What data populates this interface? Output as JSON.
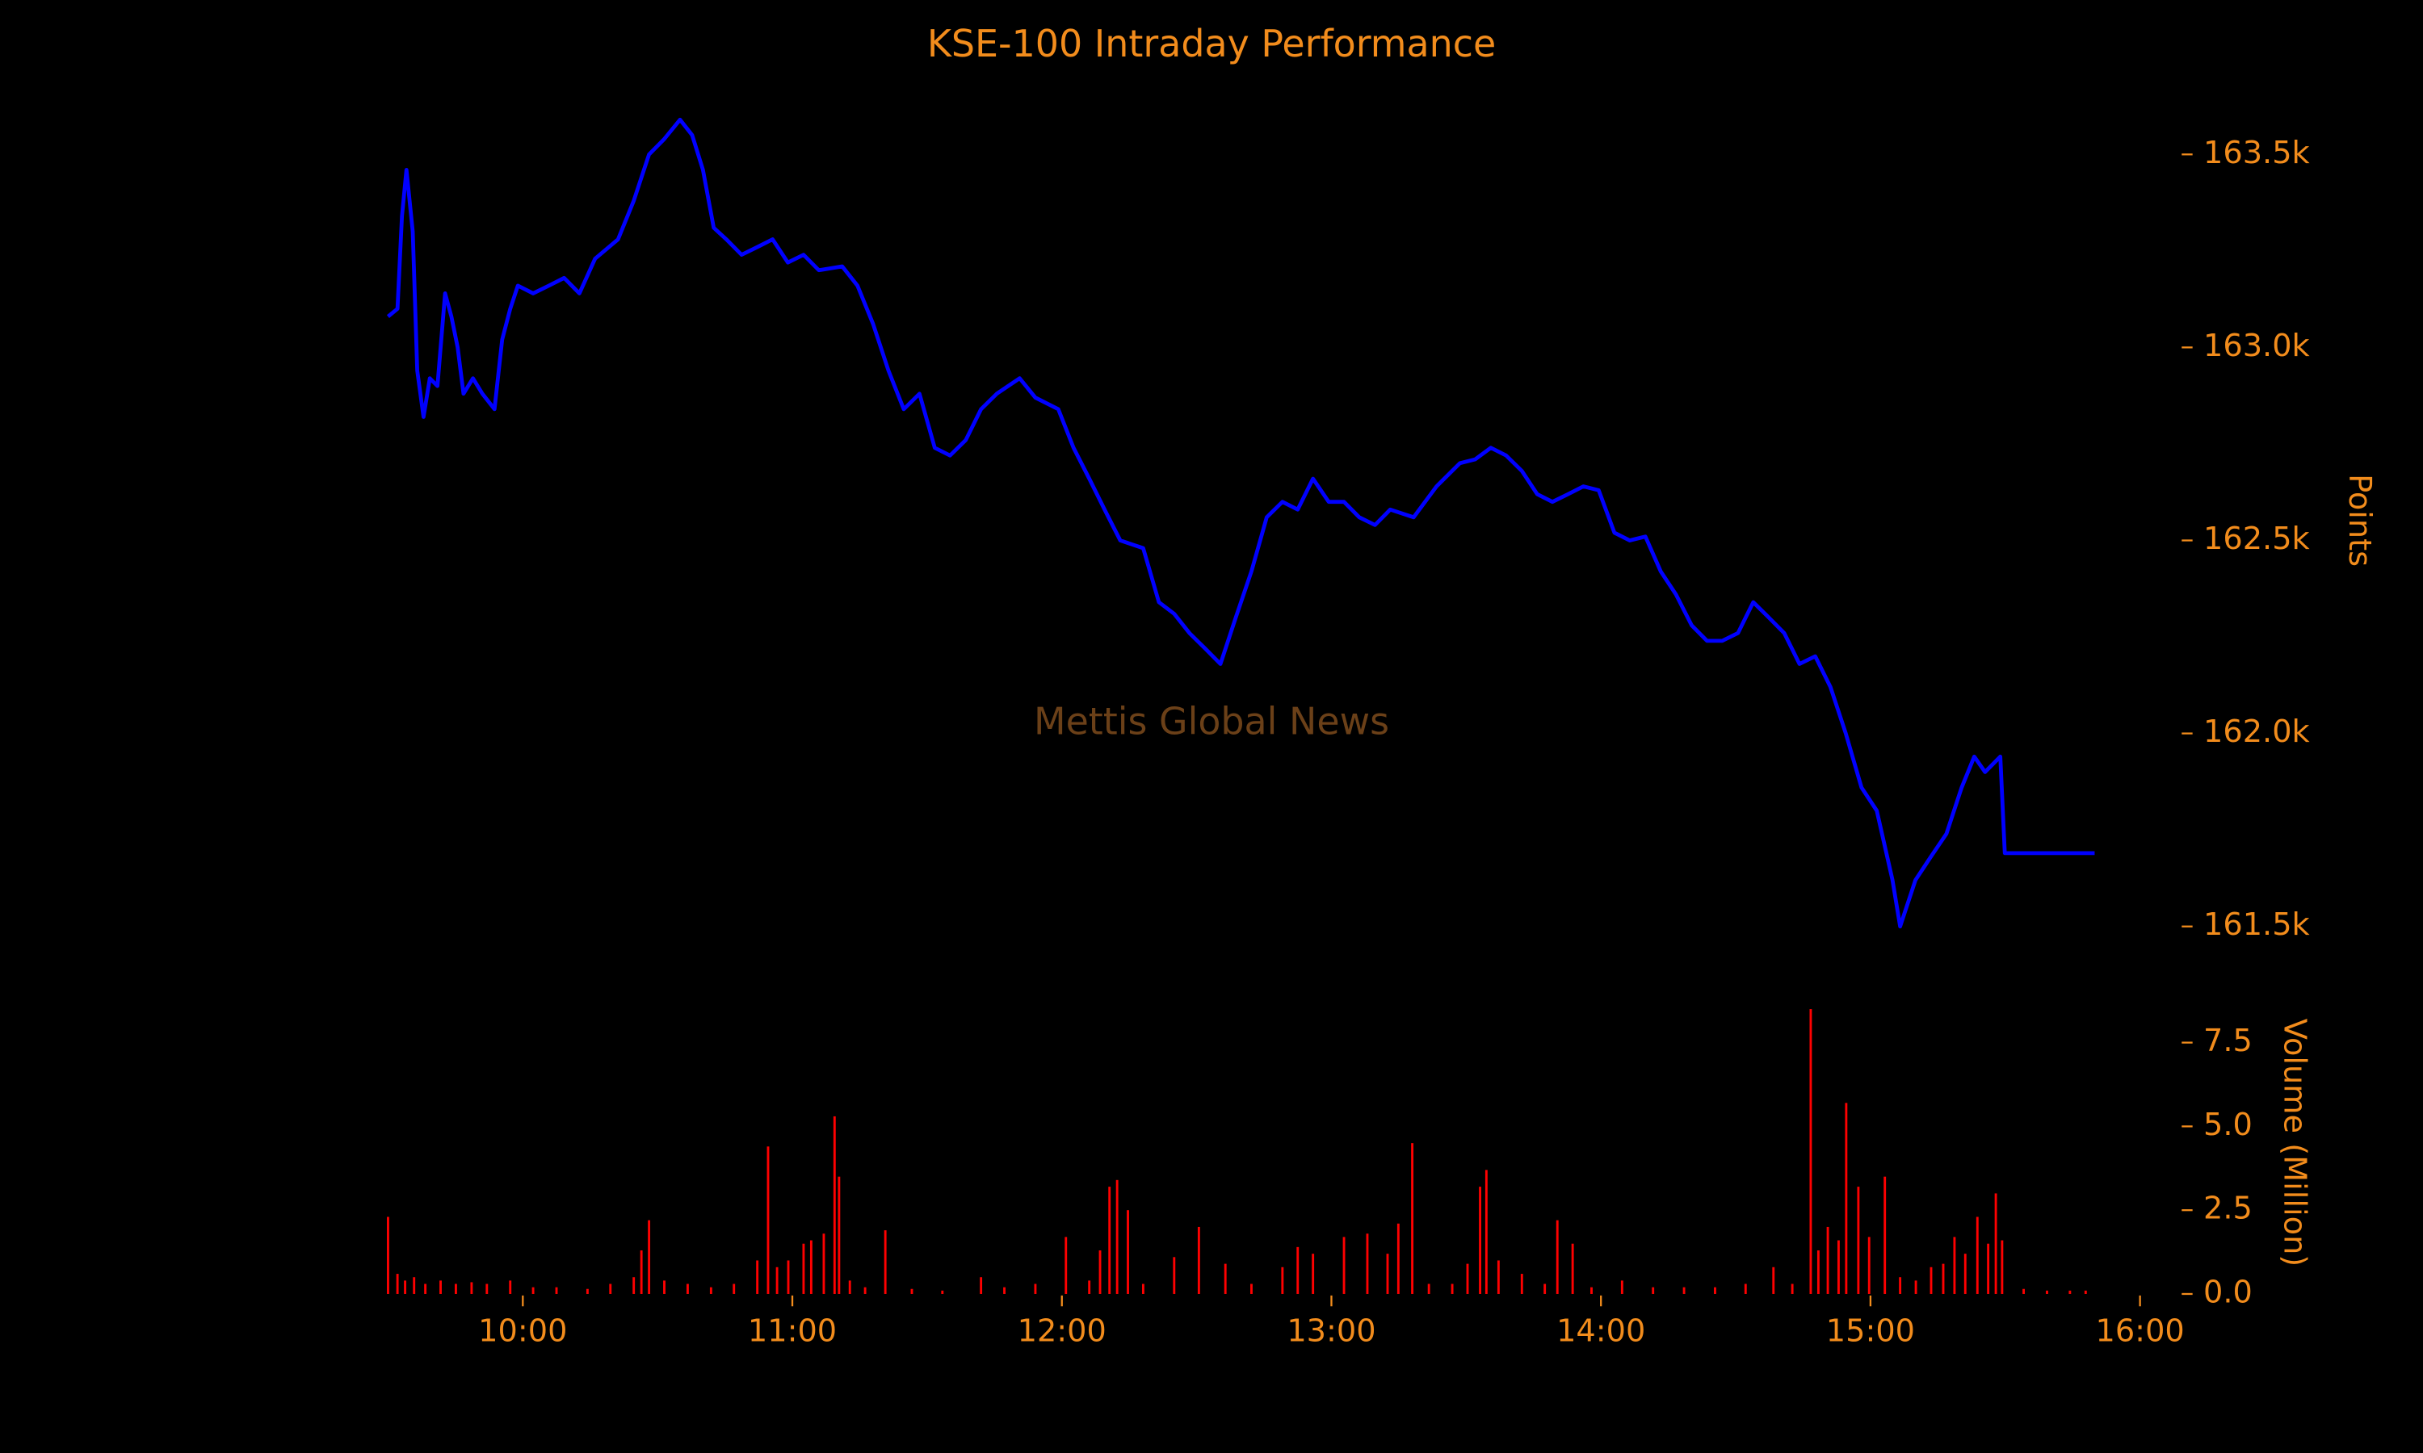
{
  "chart_data": {
    "type": "line",
    "title": "KSE-100 Intraday Performance",
    "watermark": "Mettis Global News",
    "ylabel": "Points",
    "y2label": "Volume (Million)",
    "text_color": "#f28c1c",
    "watermark_color": "#6b4018",
    "xlim": [
      570,
      960
    ],
    "xticks": [
      {
        "value": 600,
        "label": "10:00"
      },
      {
        "value": 660,
        "label": "11:00"
      },
      {
        "value": 720,
        "label": "12:00"
      },
      {
        "value": 780,
        "label": "13:00"
      },
      {
        "value": 840,
        "label": "14:00"
      },
      {
        "value": 900,
        "label": "15:00"
      },
      {
        "value": 960,
        "label": "16:00"
      }
    ],
    "ylim": [
      161420,
      163660
    ],
    "yticks": [
      {
        "value": 161500,
        "label": "161.5k"
      },
      {
        "value": 162000,
        "label": "162.0k"
      },
      {
        "value": 162500,
        "label": "162.5k"
      },
      {
        "value": 163000,
        "label": "163.0k"
      },
      {
        "value": 163500,
        "label": "163.5k"
      }
    ],
    "y2lim": [
      0,
      8.8
    ],
    "y2ticks": [
      {
        "value": 0,
        "label": "0.0"
      },
      2.5,
      {
        "value": 5,
        "label": "5.0"
      },
      7.5
    ],
    "price": {
      "color": "#0000ff",
      "x": [
        570.0,
        572.1,
        573.1,
        574.1,
        575.5,
        576.5,
        577.9,
        579.3,
        581.0,
        582.7,
        584.1,
        585.5,
        586.8,
        588.9,
        591.0,
        593.7,
        595.4,
        597.2,
        598.9,
        602.3,
        605.8,
        609.2,
        612.6,
        616.1,
        621.2,
        624.7,
        628.1,
        631.5,
        635.0,
        637.7,
        640.1,
        642.5,
        645.3,
        648.7,
        652.2,
        655.6,
        659.0,
        662.5,
        665.9,
        671.1,
        674.5,
        678.0,
        681.4,
        684.8,
        688.3,
        691.7,
        695.1,
        698.6,
        702.0,
        705.5,
        710.6,
        714.1,
        719.2,
        722.6,
        726.1,
        729.5,
        733.0,
        738.1,
        741.6,
        745.0,
        748.4,
        751.9,
        755.3,
        758.7,
        762.2,
        765.6,
        769.1,
        772.5,
        775.9,
        779.4,
        782.8,
        786.2,
        789.7,
        793.1,
        798.3,
        803.4,
        808.6,
        812.0,
        815.5,
        818.9,
        822.4,
        825.8,
        829.2,
        832.7,
        836.1,
        839.5,
        843.0,
        846.4,
        849.9,
        853.3,
        856.7,
        860.2,
        863.6,
        867.0,
        870.5,
        873.9,
        877.4,
        880.8,
        884.2,
        887.7,
        891.1,
        894.5,
        898.0,
        901.4,
        904.9,
        906.6,
        910.0,
        913.4,
        916.9,
        920.3,
        923.1,
        925.5,
        928.9,
        929.9,
        949.9
      ],
      "values": [
        163080,
        163100,
        163340,
        163460,
        163300,
        162940,
        162820,
        162920,
        162900,
        163140,
        163080,
        163000,
        162880,
        162920,
        162880,
        162840,
        163020,
        163100,
        163160,
        163140,
        163160,
        163180,
        163140,
        163230,
        163280,
        163380,
        163500,
        163540,
        163590,
        163550,
        163460,
        163310,
        163280,
        163240,
        163260,
        163280,
        163220,
        163240,
        163200,
        163210,
        163160,
        163060,
        162940,
        162840,
        162880,
        162740,
        162720,
        162760,
        162840,
        162880,
        162920,
        162870,
        162840,
        162740,
        162660,
        162580,
        162500,
        162480,
        162340,
        162310,
        162260,
        162220,
        162180,
        162300,
        162420,
        162560,
        162600,
        162580,
        162660,
        162600,
        162600,
        162560,
        162540,
        162580,
        162560,
        162640,
        162700,
        162710,
        162740,
        162720,
        162680,
        162620,
        162600,
        162620,
        162640,
        162630,
        162520,
        162500,
        162510,
        162420,
        162360,
        162280,
        162240,
        162240,
        162260,
        162340,
        162300,
        162260,
        162180,
        162200,
        162120,
        162000,
        161860,
        161800,
        161620,
        161500,
        161620,
        161680,
        161740,
        161860,
        161940,
        161900,
        161940,
        161690,
        161690
      ]
    },
    "volume": {
      "color": "#ff0000",
      "axis": "y2",
      "x": [
        570.0,
        572.1,
        573.8,
        575.8,
        578.3,
        581.7,
        585.1,
        588.6,
        592.0,
        597.2,
        602.3,
        607.5,
        614.4,
        619.5,
        624.7,
        626.4,
        628.1,
        631.5,
        636.7,
        641.9,
        647.0,
        652.2,
        654.6,
        656.6,
        659.1,
        662.5,
        664.2,
        667.0,
        669.4,
        670.4,
        672.8,
        676.2,
        680.7,
        686.6,
        693.4,
        702.0,
        707.2,
        714.1,
        720.9,
        726.1,
        728.5,
        730.6,
        732.3,
        734.7,
        738.1,
        745.0,
        750.5,
        756.4,
        762.2,
        769.1,
        772.5,
        775.9,
        782.8,
        788.0,
        792.5,
        794.9,
        798.0,
        801.7,
        806.9,
        810.3,
        813.1,
        814.5,
        817.2,
        822.4,
        827.5,
        830.3,
        833.7,
        837.9,
        844.7,
        851.6,
        858.5,
        865.4,
        872.2,
        878.4,
        882.6,
        886.7,
        888.4,
        890.5,
        892.9,
        894.6,
        897.3,
        899.7,
        903.2,
        906.6,
        910.1,
        913.5,
        916.2,
        918.7,
        921.1,
        923.8,
        926.2,
        927.9,
        929.3,
        934.1,
        939.3,
        944.4,
        947.9
      ],
      "values": [
        2.3,
        0.6,
        0.4,
        0.5,
        0.3,
        0.4,
        0.3,
        0.35,
        0.3,
        0.4,
        0.2,
        0.2,
        0.15,
        0.3,
        0.5,
        1.3,
        2.2,
        0.4,
        0.3,
        0.2,
        0.3,
        1.0,
        4.4,
        0.8,
        1.0,
        1.5,
        1.6,
        1.8,
        5.3,
        3.5,
        0.4,
        0.2,
        1.9,
        0.15,
        0.1,
        0.5,
        0.2,
        0.3,
        1.7,
        0.4,
        1.3,
        3.2,
        3.4,
        2.5,
        0.3,
        1.1,
        2.0,
        0.9,
        0.3,
        0.8,
        1.4,
        1.2,
        1.7,
        1.8,
        1.2,
        2.1,
        4.5,
        0.3,
        0.3,
        0.9,
        3.2,
        3.7,
        1.0,
        0.6,
        0.3,
        2.2,
        1.5,
        0.2,
        0.4,
        0.2,
        0.2,
        0.2,
        0.3,
        0.8,
        0.3,
        8.5,
        1.3,
        2.0,
        1.6,
        5.7,
        3.2,
        1.7,
        3.5,
        0.5,
        0.4,
        0.8,
        0.9,
        1.7,
        1.2,
        2.3,
        1.5,
        3.0,
        1.6,
        0.15,
        0.1,
        0.1,
        0.1
      ]
    }
  }
}
